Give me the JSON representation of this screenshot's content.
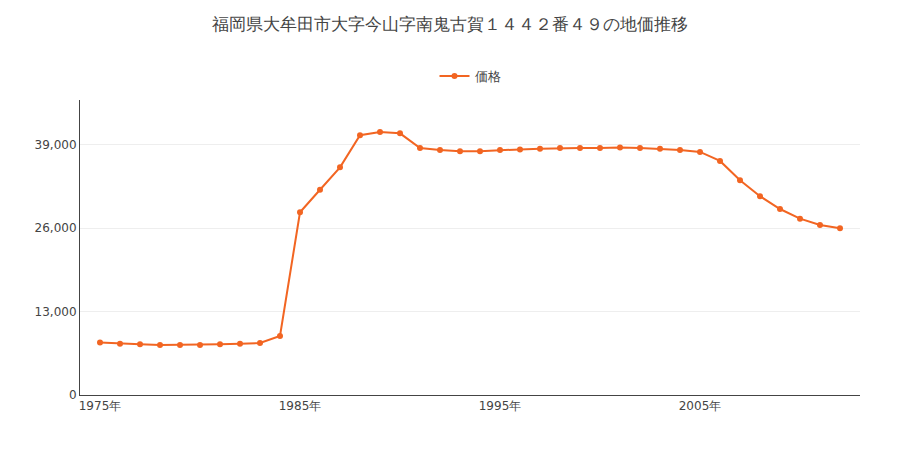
{
  "chart_data": {
    "type": "line",
    "title": "福岡県大牟田市大字今山字南鬼古賀１４４２番４９の地価推移",
    "x": [
      1975,
      1976,
      1977,
      1978,
      1979,
      1980,
      1981,
      1982,
      1983,
      1984,
      1985,
      1986,
      1987,
      1988,
      1989,
      1990,
      1991,
      1992,
      1993,
      1994,
      1995,
      1996,
      1997,
      1998,
      1999,
      2000,
      2001,
      2002,
      2003,
      2004,
      2005,
      2006,
      2007,
      2008,
      2009,
      2010,
      2011,
      2012
    ],
    "series": [
      {
        "name": "価格",
        "color": "#f26522",
        "marker": "circle",
        "line_style": "solid",
        "values": [
          8200,
          8000,
          7900,
          7800,
          7800,
          7800,
          7900,
          8000,
          8100,
          9200,
          28500,
          32000,
          35500,
          40500,
          41000,
          40800,
          38500,
          38200,
          38000,
          38000,
          38200,
          38300,
          38400,
          38500,
          38500,
          38500,
          38600,
          38500,
          38400,
          38200,
          37900,
          36500,
          33500,
          31000,
          29000,
          27500,
          26500,
          26000
        ]
      }
    ],
    "xlim": [
      1974,
      2013
    ],
    "xticks": [
      {
        "value": 1975,
        "label": "1975年"
      },
      {
        "value": 1985,
        "label": "1985年"
      },
      {
        "value": 1995,
        "label": "1995年"
      },
      {
        "value": 2005,
        "label": "2005年"
      }
    ],
    "ylim": [
      0,
      46000
    ],
    "yticks": [
      0,
      {
        "value": 13000,
        "label": "13,000"
      },
      {
        "value": 26000,
        "label": "26,000"
      },
      {
        "value": 39000,
        "label": "39,000"
      }
    ],
    "grid": "y",
    "legend": "top"
  }
}
